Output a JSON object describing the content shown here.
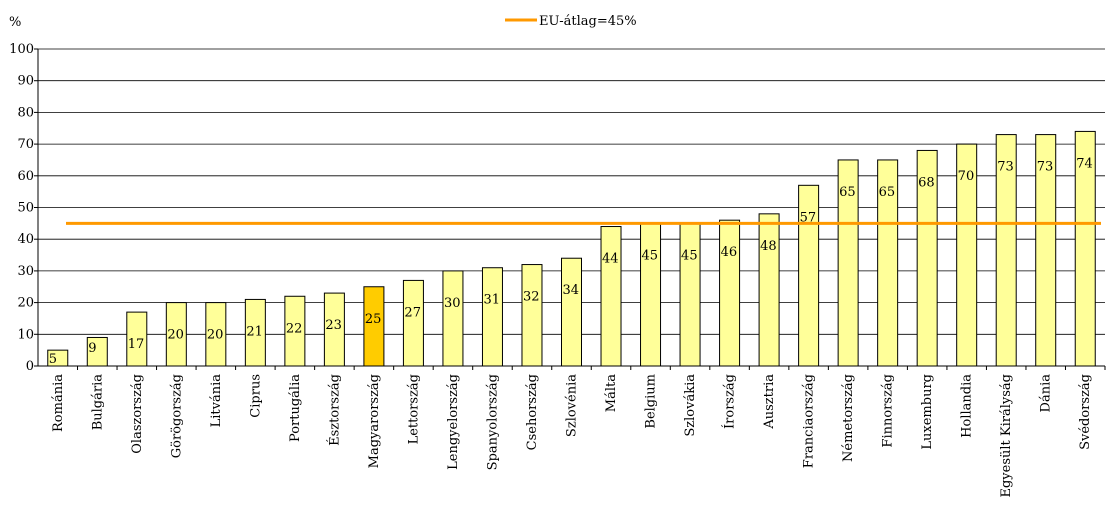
{
  "chart_data": {
    "type": "bar",
    "unit_label": "%",
    "legend": {
      "reference_label": "EU-átlag=45%",
      "placement": "top-center"
    },
    "reference_line": {
      "value": 45,
      "color": "#ff9900"
    },
    "ylim": [
      0,
      100
    ],
    "yticks": [
      0,
      10,
      20,
      30,
      40,
      50,
      60,
      70,
      80,
      90,
      100
    ],
    "grid": "horizontal",
    "bar_color": "#ffff99",
    "highlight_color": "#ffcc00",
    "highlight_category": "Magyarország",
    "categories": [
      "Románia",
      "Bulgária",
      "Olaszország",
      "Görögország",
      "Litvánia",
      "Ciprus",
      "Portugália",
      "Észtország",
      "Magyarország",
      "Lettország",
      "Lengyelország",
      "Spanyolország",
      "Csehország",
      "Szlovénia",
      "Málta",
      "Belgium",
      "Szlovákia",
      "Írország",
      "Ausztria",
      "Franciaország",
      "Németország",
      "Finnország",
      "Luxemburg",
      "Hollandia",
      "Egyesült Királyság",
      "Dánia",
      "Svédország"
    ],
    "values": [
      5,
      9,
      17,
      20,
      20,
      21,
      22,
      23,
      25,
      27,
      30,
      31,
      32,
      34,
      44,
      45,
      45,
      46,
      48,
      57,
      65,
      65,
      68,
      70,
      73,
      73,
      74
    ]
  }
}
